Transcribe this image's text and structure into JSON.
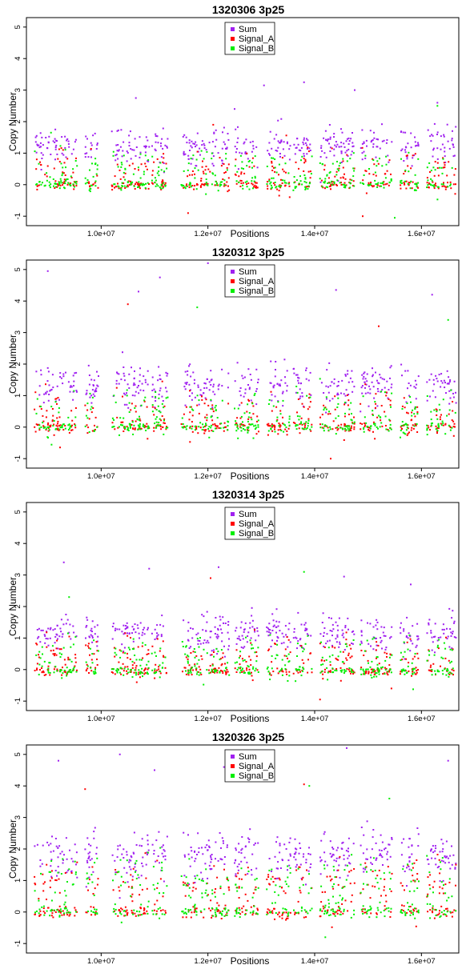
{
  "series_colors": {
    "Sum": "#a020f0",
    "Signal_A": "#ff0000",
    "Signal_B": "#00ee00"
  },
  "chart_data": [
    {
      "type": "scatter",
      "title": "1320306 3p25",
      "xlabel": "Positions",
      "ylabel": "Copy Number",
      "xlim": [
        8600000,
        16700000
      ],
      "ylim": [
        -1.3,
        5.3
      ],
      "x_ticks": [
        10000000,
        12000000,
        14000000,
        16000000
      ],
      "x_tick_labels": [
        "1.0e+07",
        "1.2e+07",
        "1.4e+07",
        "1.6e+07"
      ],
      "y_ticks": [
        -1,
        0,
        1,
        2,
        3,
        4,
        5
      ],
      "y_tick_labels": [
        "-1",
        "0",
        "1",
        "2",
        "3",
        "4",
        "5"
      ],
      "legend": {
        "placement": "top-center",
        "entries": [
          "Sum",
          "Signal_A",
          "Signal_B"
        ]
      },
      "series": [
        {
          "name": "Sum",
          "levels": [
            {
              "y": 1.25,
              "sd": 0.28,
              "n": 420
            }
          ],
          "outliers": [
            [
              13050000,
              3.15
            ],
            [
              13800000,
              3.25
            ],
            [
              14750000,
              3.0
            ],
            [
              16300000,
              2.6
            ],
            [
              10650000,
              2.75
            ],
            [
              12500000,
              2.4
            ]
          ]
        },
        {
          "name": "Signal_A",
          "levels": [
            {
              "y": 0.0,
              "sd": 0.07,
              "n": 220
            },
            {
              "y": 0.45,
              "sd": 0.35,
              "n": 200
            }
          ],
          "outliers": [
            [
              14900000,
              -1.0
            ],
            [
              12100000,
              1.9
            ]
          ]
        },
        {
          "name": "Signal_B",
          "levels": [
            {
              "y": 0.0,
              "sd": 0.07,
              "n": 220
            },
            {
              "y": 0.45,
              "sd": 0.35,
              "n": 200
            }
          ],
          "outliers": [
            [
              15500000,
              -1.05
            ],
            [
              16300000,
              2.5
            ]
          ]
        }
      ]
    },
    {
      "type": "scatter",
      "title": "1320312 3p25",
      "xlabel": "Positions",
      "ylabel": "Copy Number",
      "xlim": [
        8600000,
        16700000
      ],
      "ylim": [
        -1.3,
        5.3
      ],
      "x_ticks": [
        10000000,
        12000000,
        14000000,
        16000000
      ],
      "x_tick_labels": [
        "1.0e+07",
        "1.2e+07",
        "1.4e+07",
        "1.6e+07"
      ],
      "y_ticks": [
        -1,
        0,
        1,
        2,
        3,
        4,
        5
      ],
      "y_tick_labels": [
        "-1",
        "0",
        "1",
        "2",
        "3",
        "4",
        "5"
      ],
      "legend": {
        "placement": "top-center",
        "entries": [
          "Sum",
          "Signal_A",
          "Signal_B"
        ]
      },
      "series": [
        {
          "name": "Sum",
          "levels": [
            {
              "y": 1.35,
              "sd": 0.32,
              "n": 420
            }
          ],
          "outliers": [
            [
              9000000,
              4.95
            ],
            [
              10700000,
              4.3
            ],
            [
              11100000,
              4.75
            ],
            [
              14400000,
              4.35
            ],
            [
              16200000,
              4.2
            ],
            [
              12000000,
              5.2
            ]
          ]
        },
        {
          "name": "Signal_A",
          "levels": [
            {
              "y": 0.0,
              "sd": 0.08,
              "n": 220
            },
            {
              "y": 0.45,
              "sd": 0.38,
              "n": 200
            }
          ],
          "outliers": [
            [
              10500000,
              3.9
            ],
            [
              15200000,
              3.2
            ],
            [
              14300000,
              -1.0
            ]
          ]
        },
        {
          "name": "Signal_B",
          "levels": [
            {
              "y": 0.0,
              "sd": 0.08,
              "n": 220
            },
            {
              "y": 0.45,
              "sd": 0.38,
              "n": 200
            }
          ],
          "outliers": [
            [
              11800000,
              3.8
            ],
            [
              16500000,
              3.4
            ]
          ]
        }
      ]
    },
    {
      "type": "scatter",
      "title": "1320314 3p25",
      "xlabel": "Positions",
      "ylabel": "Copy Number",
      "xlim": [
        8600000,
        16700000
      ],
      "ylim": [
        -1.3,
        5.3
      ],
      "x_ticks": [
        10000000,
        12000000,
        14000000,
        16000000
      ],
      "x_tick_labels": [
        "1.0e+07",
        "1.2e+07",
        "1.4e+07",
        "1.6e+07"
      ],
      "y_ticks": [
        -1,
        0,
        1,
        2,
        3,
        4,
        5
      ],
      "y_tick_labels": [
        "-1",
        "0",
        "1",
        "2",
        "3",
        "4",
        "5"
      ],
      "legend": {
        "placement": "top-center",
        "entries": [
          "Sum",
          "Signal_A",
          "Signal_B"
        ]
      },
      "series": [
        {
          "name": "Sum",
          "levels": [
            {
              "y": 1.15,
              "sd": 0.28,
              "n": 420
            }
          ],
          "outliers": [
            [
              9300000,
              3.4
            ],
            [
              10900000,
              3.2
            ],
            [
              12200000,
              3.25
            ],
            [
              14550000,
              2.95
            ],
            [
              15800000,
              2.7
            ]
          ]
        },
        {
          "name": "Signal_A",
          "levels": [
            {
              "y": -0.05,
              "sd": 0.07,
              "n": 220
            },
            {
              "y": 0.4,
              "sd": 0.33,
              "n": 200
            }
          ],
          "outliers": [
            [
              12050000,
              2.9
            ],
            [
              14100000,
              -0.95
            ]
          ]
        },
        {
          "name": "Signal_B",
          "levels": [
            {
              "y": -0.05,
              "sd": 0.07,
              "n": 220
            },
            {
              "y": 0.4,
              "sd": 0.33,
              "n": 200
            }
          ],
          "outliers": [
            [
              13800000,
              3.1
            ],
            [
              9400000,
              2.3
            ]
          ]
        }
      ]
    },
    {
      "type": "scatter",
      "title": "1320326 3p25",
      "xlabel": "Positions",
      "ylabel": "Copy Number",
      "xlim": [
        8600000,
        16700000
      ],
      "ylim": [
        -1.3,
        5.3
      ],
      "x_ticks": [
        10000000,
        12000000,
        14000000,
        16000000
      ],
      "x_tick_labels": [
        "1.0e+07",
        "1.2e+07",
        "1.4e+07",
        "1.6e+07"
      ],
      "y_ticks": [
        -1,
        0,
        1,
        2,
        3,
        4,
        5
      ],
      "y_tick_labels": [
        "-1",
        "0",
        "1",
        "2",
        "3",
        "4",
        "5"
      ],
      "legend": {
        "placement": "top-center",
        "entries": [
          "Sum",
          "Signal_A",
          "Signal_B"
        ]
      },
      "series": [
        {
          "name": "Sum",
          "levels": [
            {
              "y": 1.75,
              "sd": 0.38,
              "n": 420
            }
          ],
          "outliers": [
            [
              10350000,
              5.0
            ],
            [
              14600000,
              5.2
            ],
            [
              9200000,
              4.8
            ],
            [
              12300000,
              4.6
            ],
            [
              16500000,
              4.8
            ],
            [
              11000000,
              4.5
            ]
          ]
        },
        {
          "name": "Signal_A",
          "levels": [
            {
              "y": 0.0,
              "sd": 0.09,
              "n": 220
            },
            {
              "y": 0.9,
              "sd": 0.42,
              "n": 200
            }
          ],
          "outliers": [
            [
              13800000,
              4.05
            ],
            [
              9700000,
              3.9
            ]
          ]
        },
        {
          "name": "Signal_B",
          "levels": [
            {
              "y": 0.0,
              "sd": 0.09,
              "n": 220
            },
            {
              "y": 0.9,
              "sd": 0.42,
              "n": 200
            }
          ],
          "outliers": [
            [
              13900000,
              4.0
            ],
            [
              15400000,
              3.6
            ],
            [
              14200000,
              -0.8
            ]
          ]
        }
      ]
    }
  ]
}
